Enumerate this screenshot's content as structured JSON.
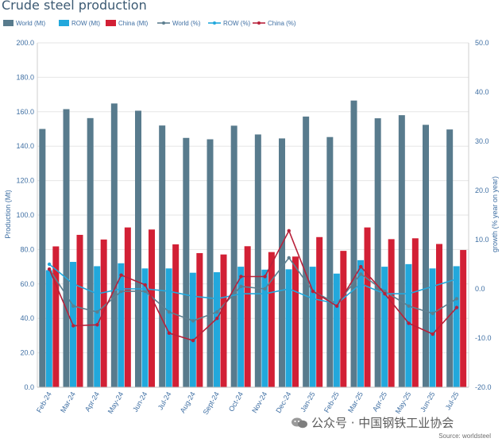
{
  "title": "Crude steel production",
  "watermark": "公众号 · 中国钢铁工业协会",
  "source": "Source: worldsteel",
  "chart_data": {
    "type": "bar",
    "categories": [
      "Feb-24",
      "Mar-24",
      "Apr-24",
      "May-24",
      "Jun-24",
      "Jul-24",
      "Aug-24",
      "Sept-24",
      "Oct-24",
      "Nov-24",
      "Dec-24",
      "Jan-25",
      "Feb-25",
      "Mar-25",
      "Apr-25",
      "May-25",
      "Jun-25",
      "Jul-25"
    ],
    "ylabel": "Production (Mt)",
    "y2label": "growth (% year on year)",
    "ylim": [
      0,
      200
    ],
    "y2lim": [
      -20,
      50
    ],
    "yticks": [
      "0.0",
      "20.0",
      "40.0",
      "60.0",
      "80.0",
      "100.0",
      "120.0",
      "140.0",
      "160.0",
      "180.0",
      "200.0"
    ],
    "y2ticks": [
      "-20.0",
      "-10.0",
      "0.0",
      "10.0",
      "20.0",
      "30.0",
      "40.0",
      "50.0"
    ],
    "legend_position": "top",
    "colors": {
      "world_bar": "#587b8d",
      "row_bar": "#22a8dc",
      "china_bar": "#d22035",
      "world_line": "#5d7f90",
      "row_line": "#22a8dc",
      "china_line": "#b8213a"
    },
    "series": [
      {
        "name": "World (Mt)",
        "kind": "bar",
        "axis": "left",
        "values": [
          150.0,
          161.5,
          156.3,
          164.8,
          160.6,
          152.0,
          144.8,
          144.0,
          151.9,
          146.8,
          144.5,
          157.2,
          145.3,
          166.5,
          156.2,
          158.0,
          152.4,
          149.7
        ]
      },
      {
        "name": "ROW (Mt)",
        "kind": "bar",
        "axis": "left",
        "values": [
          68.0,
          72.8,
          70.3,
          72.0,
          69.0,
          69.0,
          66.5,
          66.8,
          70.0,
          68.3,
          68.5,
          70.0,
          66.0,
          73.8,
          70.0,
          71.5,
          69.0,
          70.3
        ]
      },
      {
        "name": "China (Mt)",
        "kind": "bar",
        "axis": "left",
        "values": [
          81.8,
          88.5,
          85.8,
          92.8,
          91.6,
          83.0,
          77.9,
          77.1,
          81.9,
          78.5,
          75.9,
          87.2,
          79.2,
          92.8,
          86.0,
          86.5,
          83.2,
          79.7
        ]
      },
      {
        "name": "World (%)",
        "kind": "line",
        "axis": "right",
        "values": [
          4.0,
          -3.5,
          -4.7,
          -0.5,
          -0.5,
          -4.7,
          -6.5,
          -4.7,
          0.5,
          0.0,
          6.3,
          -0.5,
          -3.0,
          3.0,
          -0.5,
          -3.5,
          -5.0,
          -2.0
        ]
      },
      {
        "name": "ROW (%)",
        "kind": "line",
        "axis": "right",
        "values": [
          5.0,
          1.0,
          -1.0,
          0.0,
          0.0,
          -0.5,
          -1.5,
          -2.0,
          -1.0,
          -1.0,
          0.0,
          -2.0,
          -3.0,
          1.0,
          -1.0,
          -1.0,
          0.5,
          2.0
        ]
      },
      {
        "name": "China (%)",
        "kind": "line",
        "axis": "right",
        "values": [
          4.0,
          -7.5,
          -7.3,
          2.8,
          0.8,
          -9.0,
          -10.5,
          -6.0,
          2.5,
          2.5,
          11.8,
          -0.5,
          -3.5,
          4.5,
          -1.0,
          -7.0,
          -9.2,
          -3.8
        ]
      }
    ]
  }
}
